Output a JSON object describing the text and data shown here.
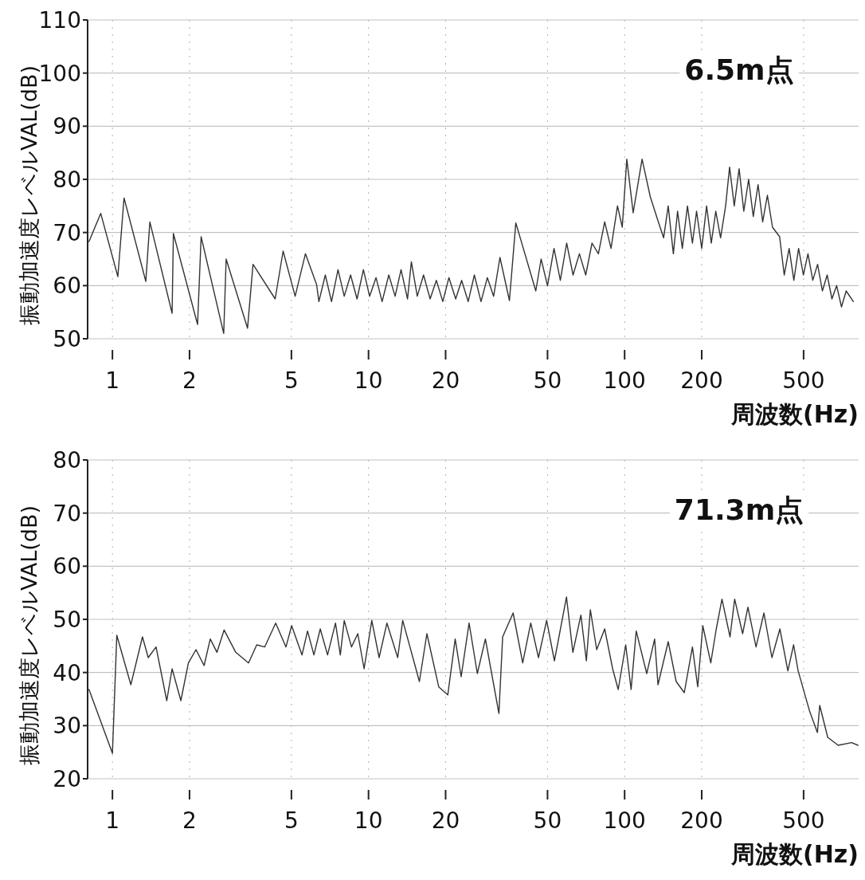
{
  "chart_data": [
    {
      "type": "line",
      "xlabel": "周波数(Hz)",
      "ylabel": "振動加速度レベルVAL(dB)",
      "annotations": [
        "6.5m点"
      ],
      "log": "x",
      "xlim": [
        0.8,
        820
      ],
      "xticks": [
        1,
        2,
        5,
        10,
        20,
        50,
        100,
        200,
        500
      ],
      "ylim": [
        50,
        110
      ],
      "yticks": [
        50,
        60,
        70,
        80,
        90,
        100,
        110
      ],
      "grid": true,
      "series": [
        {
          "color": "#333333",
          "x": [
            0.81,
            0.9,
            1.05,
            1.11,
            1.35,
            1.4,
            1.71,
            1.73,
            2.15,
            2.22,
            2.72,
            2.78,
            3.37,
            3.54,
            4.32,
            4.64,
            5.17,
            5.67,
            6.27,
            6.4,
            6.78,
            7.17,
            7.6,
            8.04,
            8.51,
            9.02,
            9.55,
            10.1,
            10.7,
            11.3,
            12.0,
            12.7,
            13.4,
            14.2,
            14.7,
            15.5,
            16.4,
            17.4,
            18.4,
            19.5,
            20.6,
            21.9,
            23.1,
            24.5,
            25.9,
            27.5,
            29.1,
            30.8,
            32.6,
            35.5,
            37.6,
            45.0,
            47.2,
            50.0,
            53.0,
            56.1,
            59.4,
            62.9,
            66.6,
            70.5,
            74.6,
            79.0,
            83.6,
            88.5,
            93.8,
            97.9,
            102,
            108,
            117,
            126,
            135,
            142,
            148,
            155,
            161,
            168,
            176,
            184,
            191,
            200,
            209,
            218,
            227,
            237,
            248,
            257,
            268,
            280,
            292,
            305,
            318,
            332,
            346,
            361,
            378,
            403,
            420,
            439,
            458,
            478,
            499,
            520,
            543,
            567,
            592,
            618,
            645,
            673,
            703,
            733,
            782
          ],
          "values": [
            68.3,
            73.6,
            61.7,
            76.5,
            60.8,
            72,
            54.8,
            69.8,
            52.7,
            69.2,
            51,
            65,
            52,
            64,
            57.5,
            66.5,
            58,
            66,
            60.2,
            57,
            62,
            57,
            63,
            58,
            62,
            57.5,
            63,
            58,
            61.5,
            57,
            62,
            58,
            63,
            57.5,
            64.5,
            58,
            62,
            57.5,
            61,
            57,
            61.5,
            57.5,
            61,
            57,
            62,
            57,
            61.5,
            58,
            65.3,
            57.2,
            71.8,
            59,
            65,
            60,
            67,
            61,
            68,
            62,
            66,
            62,
            68,
            66,
            72,
            67,
            75,
            71,
            83.8,
            73.7,
            83.8,
            76.7,
            72.2,
            69,
            75,
            66,
            74,
            67,
            75,
            68,
            74,
            67,
            75,
            68,
            74,
            69,
            75,
            82.3,
            75,
            82,
            74,
            80,
            73,
            79,
            72,
            77,
            71,
            69.2,
            62,
            67,
            61,
            67,
            62,
            66,
            61,
            64,
            59,
            62,
            57.5,
            60,
            56,
            59,
            57
          ]
        }
      ]
    },
    {
      "type": "line",
      "xlabel": "周波数(Hz)",
      "ylabel": "振動加速度レベルVAL(dB)",
      "annotations": [
        "71.3m点"
      ],
      "log": "x",
      "xlim": [
        0.8,
        820
      ],
      "xticks": [
        1,
        2,
        5,
        10,
        20,
        50,
        100,
        200,
        500
      ],
      "ylim": [
        20,
        80
      ],
      "yticks": [
        20,
        30,
        40,
        50,
        60,
        70,
        80
      ],
      "grid": true,
      "series": [
        {
          "color": "#333333",
          "x": [
            0.81,
            1.0,
            1.04,
            1.18,
            1.31,
            1.38,
            1.48,
            1.63,
            1.71,
            1.85,
            1.98,
            2.12,
            2.28,
            2.41,
            2.56,
            2.73,
            3.03,
            3.4,
            3.66,
            3.93,
            4.34,
            4.76,
            5.01,
            5.5,
            5.78,
            6.12,
            6.48,
            6.92,
            7.43,
            7.76,
            8.04,
            8.58,
            9.08,
            9.61,
            10.3,
            11.0,
            11.8,
            13.0,
            13.6,
            15.8,
            16.9,
            18.8,
            20.4,
            21.8,
            23.0,
            24.7,
            26.6,
            28.6,
            32.3,
            33.4,
            36.7,
            40.0,
            43.0,
            46.1,
            49.6,
            53.2,
            59.3,
            62.8,
            67.5,
            70.9,
            73.5,
            77.8,
            83.6,
            89.8,
            94.4,
            101,
            106,
            111,
            122,
            131,
            135,
            148,
            159,
            171,
            184,
            193,
            202,
            217,
            228,
            240,
            258,
            269,
            289,
            303,
            326,
            350,
            376,
            404,
            434,
            457,
            476,
            527,
            566,
            578,
            621,
            682,
            770,
            815
          ],
          "values": [
            36.8,
            24.8,
            47,
            37.7,
            46.7,
            42.8,
            44.8,
            34.7,
            40.7,
            34.7,
            41.8,
            44.3,
            41.3,
            46.3,
            43.8,
            48,
            43.8,
            41.8,
            45.2,
            44.8,
            49.3,
            44.8,
            48.8,
            43.3,
            47.8,
            43.3,
            48.2,
            43.3,
            49.3,
            43.3,
            49.8,
            44.8,
            47.3,
            40.7,
            49.8,
            42.8,
            49.3,
            42.8,
            49.8,
            38.3,
            47.3,
            37.3,
            35.8,
            46.3,
            39.2,
            49.3,
            39.8,
            46.3,
            32.3,
            46.7,
            51.2,
            41.8,
            49.3,
            42.8,
            49.8,
            42.2,
            54.2,
            43.8,
            50.8,
            42.2,
            51.8,
            44.3,
            48.2,
            40.7,
            36.8,
            45.2,
            36.8,
            47.8,
            39.8,
            46.3,
            37.7,
            45.8,
            38.3,
            36.2,
            44.8,
            37.3,
            48.8,
            41.8,
            48.2,
            53.8,
            46.7,
            53.8,
            47.3,
            52.3,
            44.8,
            51.2,
            42.8,
            48.2,
            40.3,
            45.2,
            40.3,
            32.8,
            28.7,
            33.8,
            27.8,
            26.3,
            26.8,
            26.3
          ]
        }
      ]
    }
  ]
}
